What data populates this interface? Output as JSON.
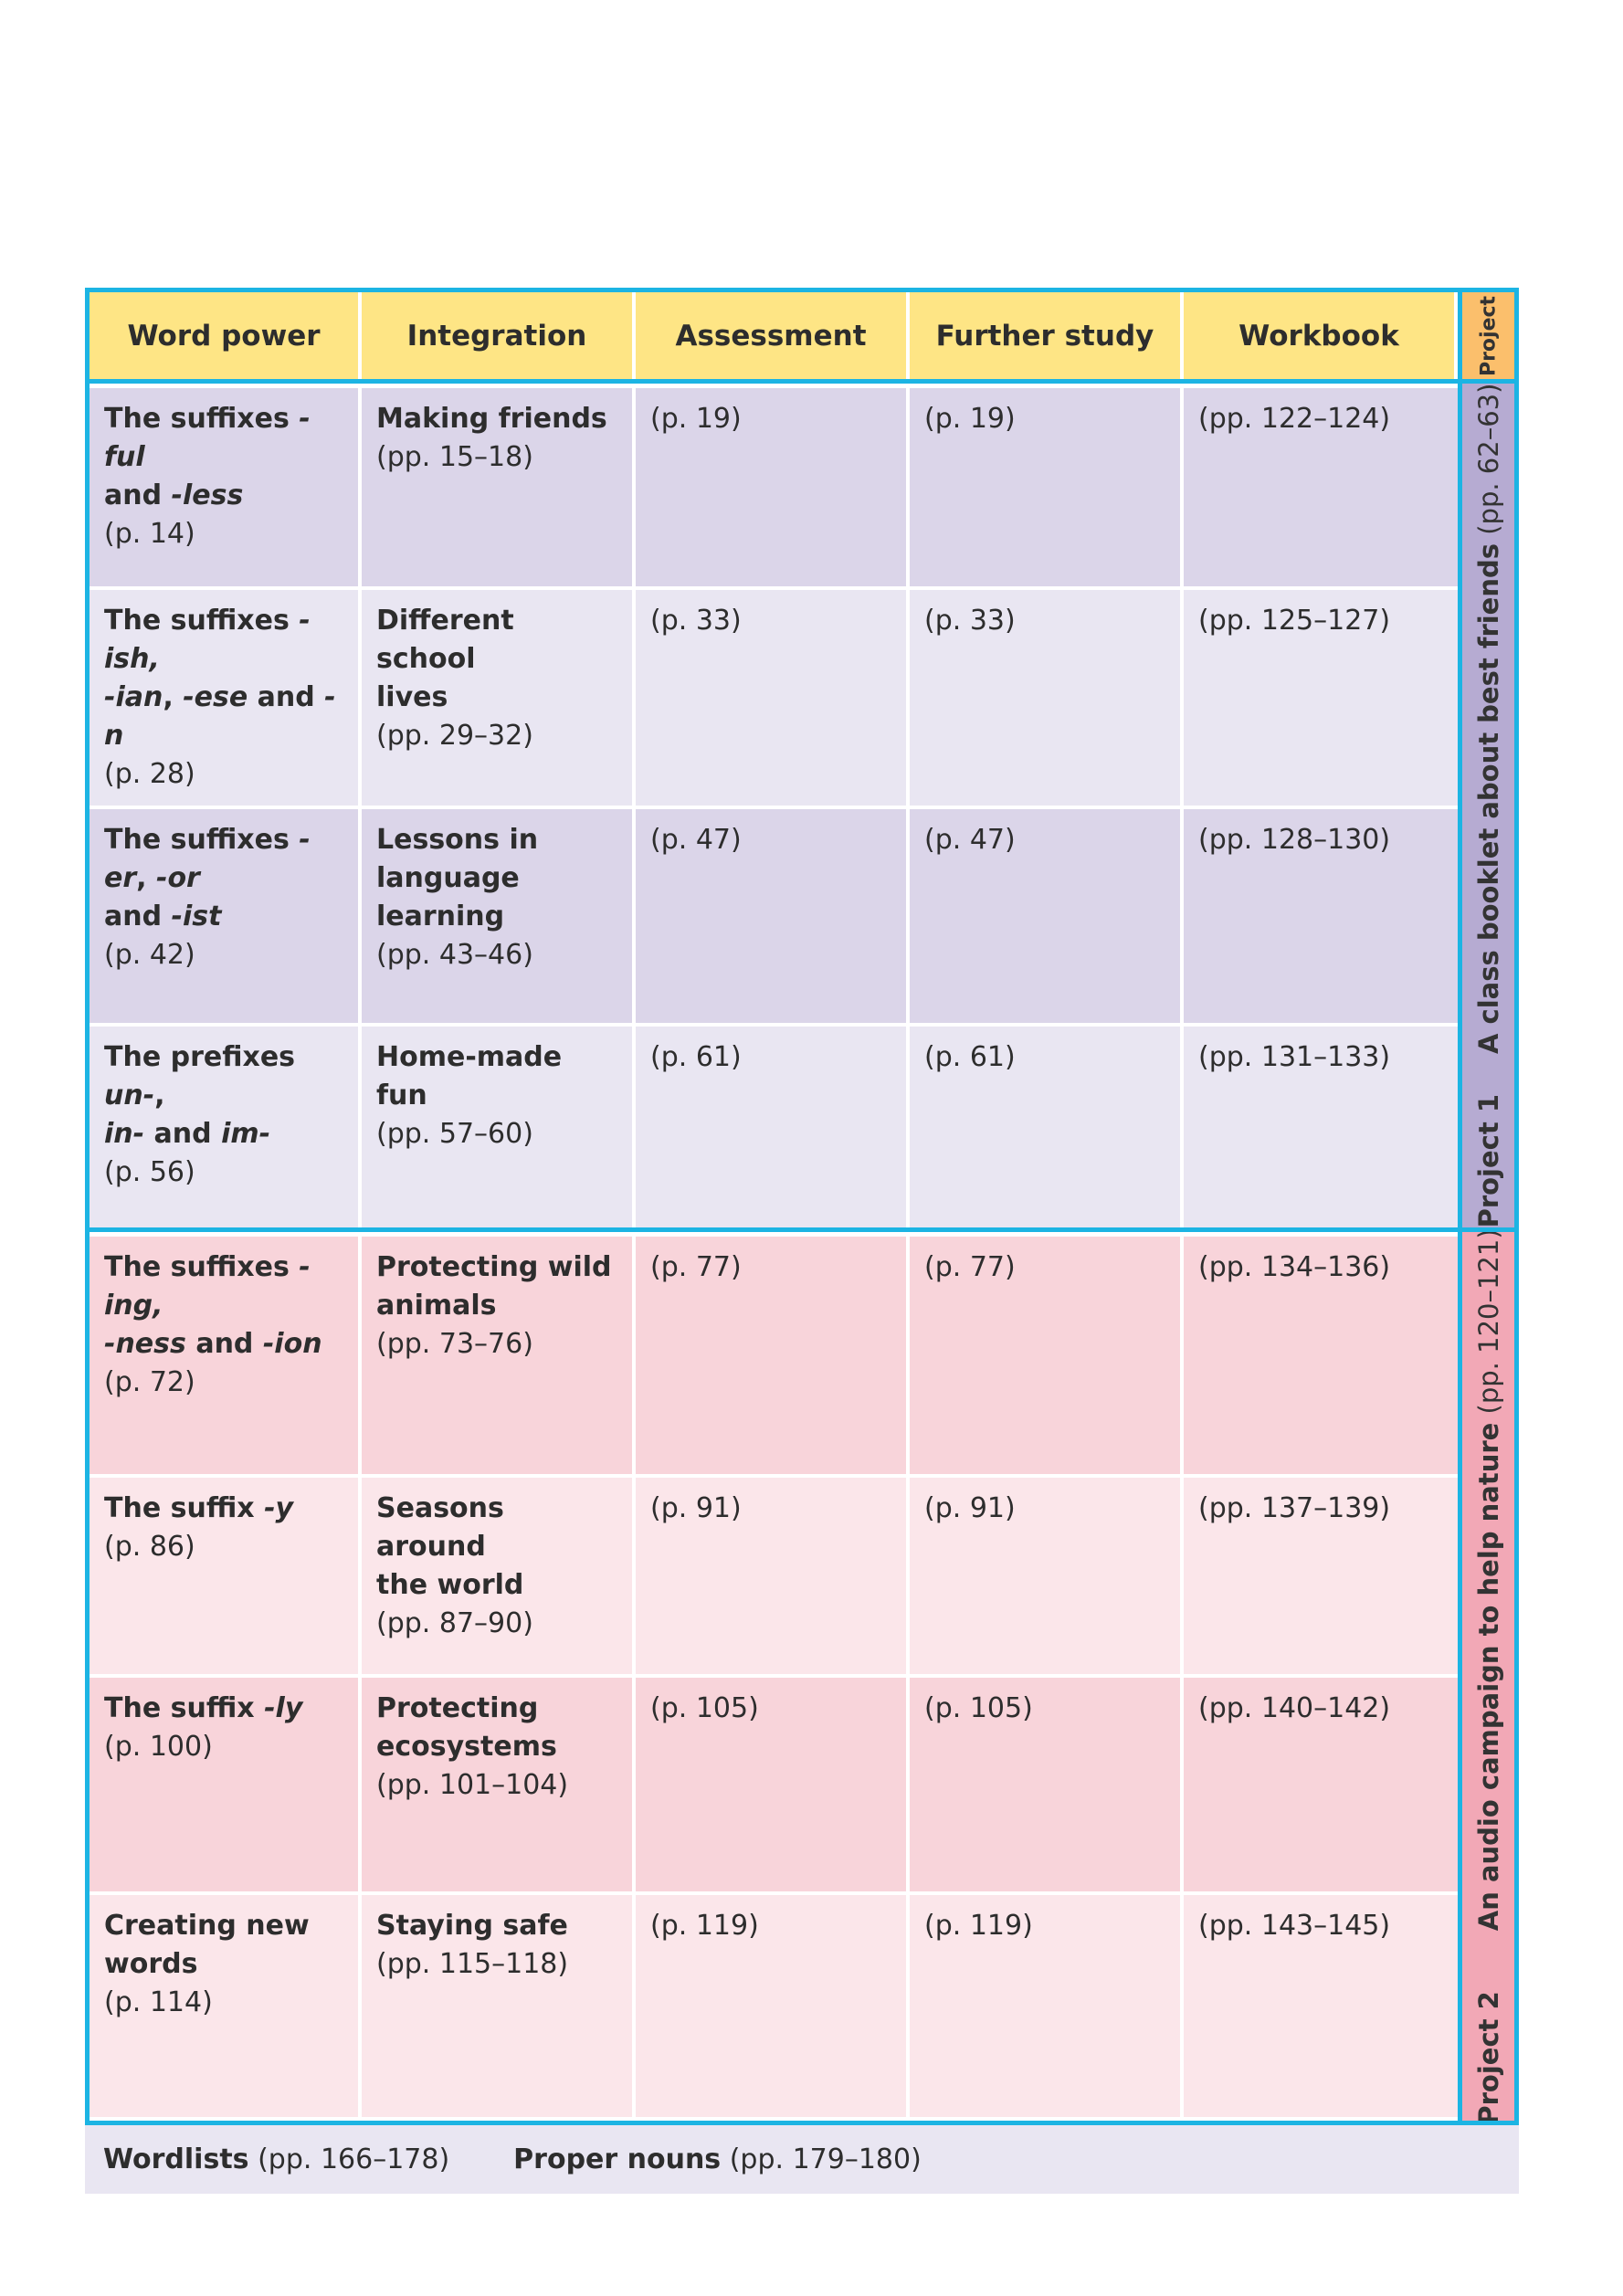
{
  "headers": [
    "Word power",
    "Integration",
    "Assessment",
    "Further study",
    "Workbook"
  ],
  "side_header": "Project",
  "rows": [
    {
      "wp_parts": [
        [
          "The suffixes ",
          "b"
        ],
        [
          "-ful",
          "bi"
        ],
        [
          "\nand ",
          "b"
        ],
        [
          "-less",
          "bi"
        ]
      ],
      "wp_page": "(p. 14)",
      "int_title": "Making friends",
      "int_pages": "(pp. 15–18)",
      "assessment": "(p. 19)",
      "further": "(p. 19)",
      "workbook": "(pp. 122–124)"
    },
    {
      "wp_parts": [
        [
          "The suffixes ",
          "b"
        ],
        [
          "-ish,",
          "bi"
        ],
        [
          "\n-ian",
          "bi"
        ],
        [
          ", ",
          "b"
        ],
        [
          "-ese",
          "bi"
        ],
        [
          " and ",
          "b"
        ],
        [
          "-n",
          "bi"
        ]
      ],
      "wp_page": "(p. 28)",
      "int_title": "Different school\nlives",
      "int_pages": "(pp. 29–32)",
      "assessment": "(p. 33)",
      "further": "(p. 33)",
      "workbook": "(pp. 125–127)"
    },
    {
      "wp_parts": [
        [
          "The suffixes ",
          "b"
        ],
        [
          "-er",
          "bi"
        ],
        [
          ", ",
          "b"
        ],
        [
          "-or",
          "bi"
        ],
        [
          "\nand ",
          "b"
        ],
        [
          "-ist",
          "bi"
        ]
      ],
      "wp_page": "(p. 42)",
      "int_title": "Lessons in\nlanguage learning",
      "int_pages": "(pp. 43–46)",
      "assessment": "(p. 47)",
      "further": "(p. 47)",
      "workbook": "(pp. 128–130)"
    },
    {
      "wp_parts": [
        [
          "The prefixes ",
          "b"
        ],
        [
          "un-",
          "bi"
        ],
        [
          ",",
          "b"
        ],
        [
          "\nin-",
          "bi"
        ],
        [
          " and ",
          "b"
        ],
        [
          "im-",
          "bi"
        ]
      ],
      "wp_page": "(p. 56)",
      "int_title": "Home-made fun",
      "int_pages": "(pp. 57–60)",
      "assessment": "(p. 61)",
      "further": "(p. 61)",
      "workbook": "(pp. 131–133)"
    },
    {
      "wp_parts": [
        [
          "The suffixes ",
          "b"
        ],
        [
          "-ing,",
          "bi"
        ],
        [
          "\n-ness",
          "bi"
        ],
        [
          " and ",
          "b"
        ],
        [
          "-ion",
          "bi"
        ]
      ],
      "wp_page": "(p. 72)",
      "int_title": "Protecting wild\nanimals",
      "int_pages": "(pp. 73–76)",
      "assessment": "(p. 77)",
      "further": "(p. 77)",
      "workbook": "(pp. 134–136)"
    },
    {
      "wp_parts": [
        [
          "The suffix ",
          "b"
        ],
        [
          "-y",
          "bi"
        ]
      ],
      "wp_page": "(p. 86)",
      "int_title": "Seasons around\nthe world",
      "int_pages": "(pp. 87–90)",
      "assessment": "(p. 91)",
      "further": "(p. 91)",
      "workbook": "(pp. 137–139)"
    },
    {
      "wp_parts": [
        [
          "The suffix ",
          "b"
        ],
        [
          "-ly",
          "bi"
        ]
      ],
      "wp_page": "(p. 100)",
      "int_title": "Protecting\necosystems",
      "int_pages": "(pp. 101–104)",
      "assessment": "(p. 105)",
      "further": "(p. 105)",
      "workbook": "(pp. 140–142)"
    },
    {
      "wp_parts": [
        [
          "Creating new\nwords",
          "b"
        ]
      ],
      "wp_page": "(p. 114)",
      "int_title": "Staying safe",
      "int_pages": "(pp. 115–118)",
      "assessment": "(p. 119)",
      "further": "(p. 119)",
      "workbook": "(pp. 143–145)"
    }
  ],
  "projects": [
    {
      "label": "Project 1",
      "title": "A class booklet about best friends",
      "pages": "(pp. 62–63)"
    },
    {
      "label": "Project 2",
      "title": "An audio campaign to help nature",
      "pages": "(pp. 120–121)"
    }
  ],
  "footer": [
    {
      "label": "Wordlists",
      "pages": "(pp. 166–178)"
    },
    {
      "label": "Proper nouns",
      "pages": "(pp. 179–180)"
    }
  ]
}
